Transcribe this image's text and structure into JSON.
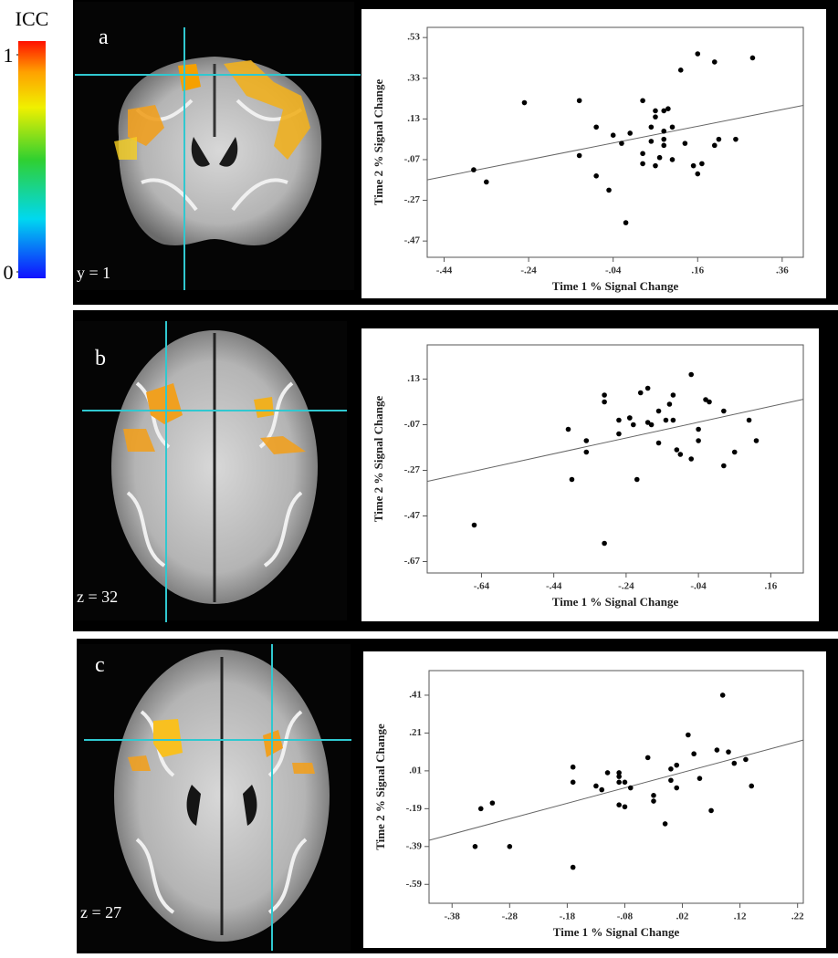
{
  "colorbar": {
    "title": "ICC",
    "ticks": [
      0,
      1
    ]
  },
  "panels": [
    {
      "label": "a",
      "slice": "y = 1"
    },
    {
      "label": "b",
      "slice": "z = 32"
    },
    {
      "label": "c",
      "slice": "z = 27"
    }
  ],
  "chart_data": [
    {
      "type": "scatter",
      "x_label": "Time 1 % Signal Change",
      "y_label": "Time 2 % Signal Change",
      "color": "#000000",
      "trend_line": true,
      "x": [
        -0.37,
        -0.34,
        -0.25,
        -0.12,
        -0.12,
        -0.08,
        -0.08,
        -0.05,
        -0.04,
        -0.02,
        -0.01,
        0.0,
        0.03,
        0.03,
        0.03,
        0.05,
        0.05,
        0.06,
        0.06,
        0.06,
        0.07,
        0.08,
        0.08,
        0.08,
        0.08,
        0.09,
        0.1,
        0.1,
        0.12,
        0.13,
        0.15,
        0.16,
        0.16,
        0.17,
        0.2,
        0.2,
        0.21,
        0.25,
        0.29
      ],
      "values": [
        -0.12,
        -0.18,
        0.21,
        0.22,
        -0.05,
        -0.15,
        0.09,
        -0.22,
        0.05,
        0.01,
        -0.38,
        0.06,
        0.22,
        -0.04,
        -0.09,
        0.02,
        0.09,
        0.17,
        0.14,
        -0.1,
        -0.06,
        0.0,
        0.07,
        0.03,
        0.17,
        0.18,
        -0.07,
        0.09,
        0.37,
        0.01,
        -0.1,
        -0.14,
        0.45,
        -0.09,
        0.41,
        0.0,
        0.03,
        0.03,
        0.43
      ],
      "xlim": [
        -0.48,
        0.41
      ],
      "ylim": [
        -0.55,
        0.58
      ],
      "xticks": [
        {
          "value": -0.44,
          "label": "-.44"
        },
        {
          "value": -0.24,
          "label": "-.24"
        },
        {
          "value": -0.04,
          "label": "-.04"
        },
        {
          "value": 0.16,
          "label": ".16"
        },
        {
          "value": 0.36,
          "label": ".36"
        }
      ],
      "yticks": [
        {
          "value": 0.53,
          "label": ".53"
        },
        {
          "value": 0.33,
          "label": ".33"
        },
        {
          "value": 0.13,
          "label": ".13"
        },
        {
          "value": -0.07,
          "label": "-.07"
        },
        {
          "value": -0.27,
          "label": "-.27"
        },
        {
          "value": -0.47,
          "label": "-.47"
        }
      ]
    },
    {
      "type": "scatter",
      "x_label": "Time 1 % Signal Change",
      "y_label": "Time 2 % Signal Change",
      "color": "#000000",
      "trend_line": true,
      "x": [
        -0.66,
        -0.4,
        -0.39,
        -0.35,
        -0.35,
        -0.3,
        -0.3,
        -0.3,
        -0.26,
        -0.26,
        -0.23,
        -0.23,
        -0.22,
        -0.21,
        -0.2,
        -0.18,
        -0.18,
        -0.17,
        -0.15,
        -0.15,
        -0.13,
        -0.12,
        -0.11,
        -0.11,
        -0.1,
        -0.09,
        -0.06,
        -0.06,
        -0.04,
        -0.04,
        -0.02,
        -0.01,
        0.03,
        0.03,
        0.06,
        0.1,
        0.12
      ],
      "values": [
        -0.51,
        -0.09,
        -0.31,
        -0.14,
        -0.19,
        -0.59,
        0.06,
        0.03,
        -0.11,
        -0.05,
        -0.04,
        -0.04,
        -0.07,
        -0.31,
        0.07,
        -0.06,
        0.09,
        -0.07,
        -0.01,
        -0.15,
        -0.05,
        0.02,
        0.06,
        -0.05,
        -0.18,
        -0.2,
        -0.22,
        0.15,
        -0.09,
        -0.14,
        0.04,
        0.03,
        -0.01,
        -0.25,
        -0.19,
        -0.05,
        -0.14
      ],
      "xlim": [
        -0.79,
        0.25
      ],
      "ylim": [
        -0.72,
        0.28
      ],
      "xticks": [
        {
          "value": -0.64,
          "label": "-.64"
        },
        {
          "value": -0.44,
          "label": "-.44"
        },
        {
          "value": -0.24,
          "label": "-.24"
        },
        {
          "value": -0.04,
          "label": "-.04"
        },
        {
          "value": 0.16,
          "label": ".16"
        }
      ],
      "yticks": [
        {
          "value": 0.13,
          "label": ".13"
        },
        {
          "value": -0.07,
          "label": "-.07"
        },
        {
          "value": -0.27,
          "label": "-.27"
        },
        {
          "value": -0.47,
          "label": "-.47"
        },
        {
          "value": -0.67,
          "label": "-.67"
        }
      ]
    },
    {
      "type": "scatter",
      "x_label": "Time 1 % Signal Change",
      "y_label": "Time 2 % Signal Change",
      "color": "#000000",
      "trend_line": true,
      "x": [
        -0.34,
        -0.33,
        -0.31,
        -0.28,
        -0.17,
        -0.17,
        -0.17,
        -0.13,
        -0.12,
        -0.11,
        -0.09,
        -0.09,
        -0.09,
        -0.09,
        -0.08,
        -0.08,
        -0.07,
        -0.04,
        -0.03,
        -0.03,
        -0.01,
        0.0,
        0.0,
        0.01,
        0.01,
        0.03,
        0.04,
        0.05,
        0.07,
        0.08,
        0.09,
        0.1,
        0.11,
        0.13,
        0.14
      ],
      "values": [
        -0.39,
        -0.19,
        -0.16,
        -0.39,
        -0.5,
        0.03,
        -0.05,
        -0.07,
        -0.09,
        0.0,
        -0.05,
        0.0,
        -0.02,
        -0.17,
        -0.18,
        -0.05,
        -0.08,
        0.08,
        -0.12,
        -0.15,
        -0.27,
        0.02,
        -0.04,
        -0.08,
        0.04,
        0.2,
        0.1,
        -0.03,
        -0.2,
        0.12,
        0.41,
        0.11,
        0.05,
        0.07,
        -0.07
      ],
      "xlim": [
        -0.42,
        0.23
      ],
      "ylim": [
        -0.69,
        0.54
      ],
      "xticks": [
        {
          "value": -0.38,
          "label": "-.38"
        },
        {
          "value": -0.28,
          "label": "-.28"
        },
        {
          "value": -0.18,
          "label": "-.18"
        },
        {
          "value": -0.08,
          "label": "-.08"
        },
        {
          "value": 0.02,
          "label": ".02"
        },
        {
          "value": 0.12,
          "label": ".12"
        },
        {
          "value": 0.22,
          "label": ".22"
        }
      ],
      "yticks": [
        {
          "value": 0.41,
          "label": ".41"
        },
        {
          "value": 0.21,
          "label": ".21"
        },
        {
          "value": 0.01,
          "label": ".01"
        },
        {
          "value": -0.19,
          "label": "-.19"
        },
        {
          "value": -0.39,
          "label": "-.39"
        },
        {
          "value": -0.59,
          "label": "-.59"
        }
      ]
    }
  ]
}
